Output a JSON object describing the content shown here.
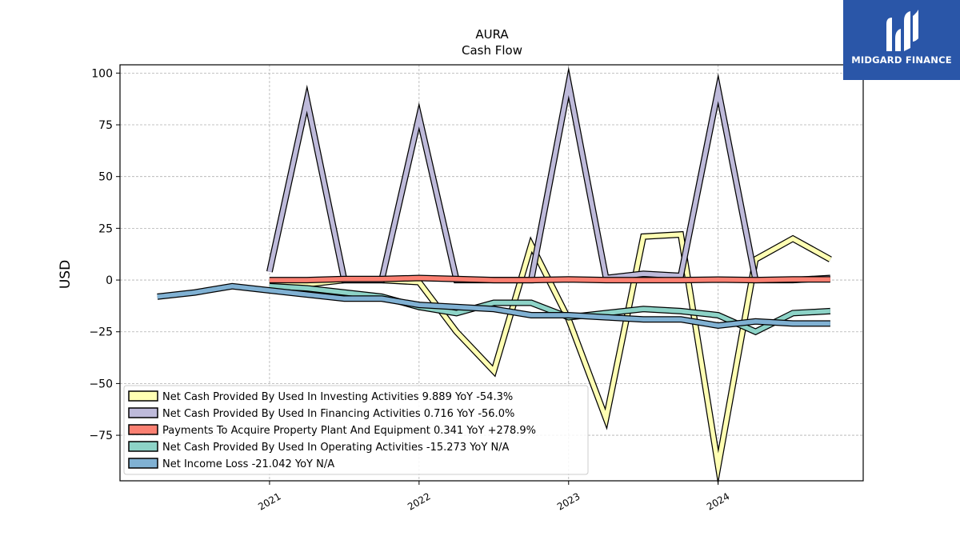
{
  "chart_data": {
    "type": "line",
    "title": "AURA",
    "subtitle": "Cash Flow",
    "xlabel": "",
    "ylabel": "USD",
    "ylim": [
      -97,
      104
    ],
    "xlim": [
      2020.0,
      2024.97
    ],
    "yticks": [
      100,
      75,
      50,
      25,
      0,
      -25,
      -50,
      -75
    ],
    "ytick_labels": [
      "100",
      "75",
      "50",
      "25",
      "0",
      "−25",
      "−50",
      "−75"
    ],
    "xticks": [
      2021,
      2022,
      2023,
      2024
    ],
    "xtick_labels": [
      "2021",
      "2022",
      "2023",
      "2024"
    ],
    "grid": true,
    "legend_position": "lower-left",
    "series": [
      {
        "name": "Net Cash Provided By Used In Investing Activities",
        "legend": "Net Cash Provided By Used In Investing Activities  9.889 YoY -54.3%",
        "color": "#ffffb3",
        "x": [
          2021.0,
          2021.25,
          2021.5,
          2021.75,
          2022.0,
          2022.25,
          2022.5,
          2022.75,
          2023.0,
          2023.25,
          2023.5,
          2023.75,
          2024.0,
          2024.25,
          2024.5,
          2024.75
        ],
        "y": [
          -1,
          -2,
          0,
          0,
          -1,
          -25,
          -44,
          17,
          -19,
          -67,
          21,
          22,
          -90,
          10,
          20,
          10
        ]
      },
      {
        "name": "Net Cash Provided By Used In Financing Activities",
        "legend": "Net Cash Provided By Used In Financing Activities  0.716 YoY -56.0%",
        "color": "#bebada",
        "x": [
          2021.0,
          2021.25,
          2021.5,
          2021.75,
          2022.0,
          2022.25,
          2022.5,
          2022.75,
          2023.0,
          2023.25,
          2023.5,
          2023.75,
          2024.0,
          2024.25,
          2024.5,
          2024.75
        ],
        "y": [
          4,
          87,
          0,
          0,
          79,
          0,
          0,
          0,
          95,
          1,
          3,
          2,
          92,
          0,
          0,
          1
        ]
      },
      {
        "name": "Payments To Acquire Property Plant And Equipment",
        "legend": "Payments To Acquire Property Plant And Equipment  0.341 YoY +278.9%",
        "color": "#fb8072",
        "x": [
          2021.0,
          2021.25,
          2021.5,
          2021.75,
          2022.0,
          2022.25,
          2022.5,
          2022.75,
          2023.0,
          2023.25,
          2023.5,
          2023.75,
          2024.0,
          2024.25,
          2024.5,
          2024.75
        ],
        "y": [
          0,
          0,
          0.5,
          0.5,
          1,
          0.5,
          0,
          0,
          0.3,
          0,
          0,
          0,
          0.2,
          0,
          0.3,
          0.3
        ]
      },
      {
        "name": "Net Cash Provided By Used In Operating Activities",
        "legend": "Net Cash Provided By Used In Operating Activities  -15.273 YoY N/A",
        "color": "#8dd3c7",
        "x": [
          2021.0,
          2021.25,
          2021.5,
          2021.75,
          2022.0,
          2022.25,
          2022.5,
          2022.75,
          2023.0,
          2023.25,
          2023.5,
          2023.75,
          2024.0,
          2024.25,
          2024.5,
          2024.75
        ],
        "y": [
          -3,
          -4,
          -6,
          -8,
          -13,
          -16,
          -11,
          -11,
          -18,
          -16,
          -14,
          -15,
          -17,
          -25,
          -16,
          -15
        ]
      },
      {
        "name": "Net Income Loss",
        "legend": "Net Income Loss  -21.042 YoY N/A",
        "color": "#80b1d3",
        "x": [
          2020.25,
          2020.5,
          2020.75,
          2021.0,
          2021.25,
          2021.5,
          2021.75,
          2022.0,
          2022.25,
          2022.5,
          2022.75,
          2023.0,
          2023.25,
          2023.5,
          2023.75,
          2024.0,
          2024.25,
          2024.5,
          2024.75
        ],
        "y": [
          -8,
          -6,
          -3,
          -5,
          -7,
          -9,
          -9,
          -12,
          -13,
          -14,
          -17,
          -17,
          -18,
          -19,
          -19,
          -22,
          -20,
          -21,
          -21
        ]
      }
    ]
  },
  "logo": {
    "text": "MIDGARD FINANCE",
    "bg_color": "#2a56a8"
  }
}
